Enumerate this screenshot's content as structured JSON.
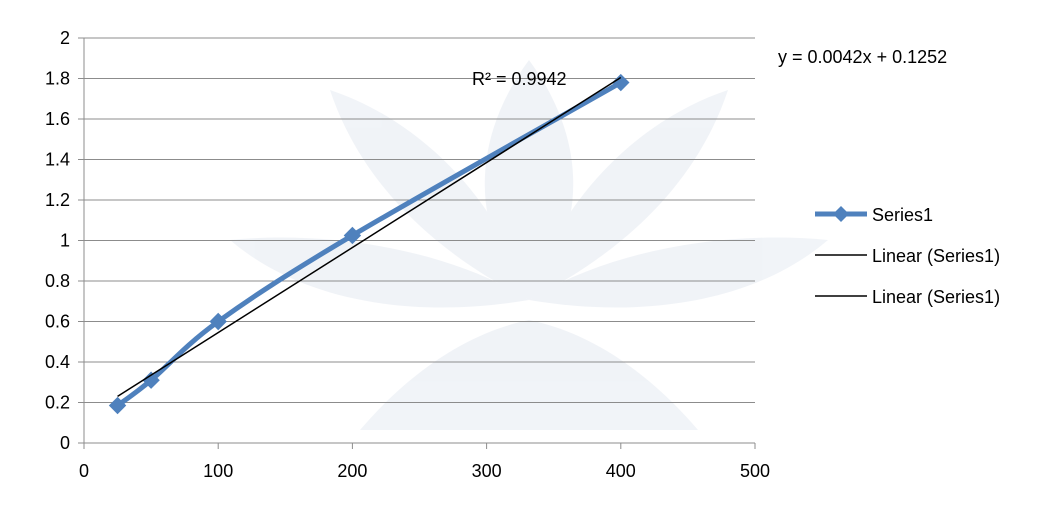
{
  "chart_data": {
    "type": "scatter",
    "title": "",
    "xlabel": "",
    "ylabel": "",
    "xlim": [
      0,
      500
    ],
    "ylim": [
      0,
      2
    ],
    "x_ticks": [
      0,
      100,
      200,
      300,
      400,
      500
    ],
    "y_ticks": [
      0,
      0.2,
      0.4,
      0.6,
      0.8,
      1,
      1.2,
      1.4,
      1.6,
      1.8,
      2
    ],
    "grid": "horizontal",
    "legend_position": "right",
    "series": [
      {
        "name": "Series1",
        "color": "#4F81BD",
        "marker": "diamond",
        "x": [
          25,
          50,
          100,
          200,
          400
        ],
        "y": [
          0.185,
          0.31,
          0.6,
          1.025,
          1.78
        ]
      }
    ],
    "trendline": {
      "color": "#000000",
      "slope": 0.0042,
      "intercept": 0.1252,
      "x_range": [
        25,
        400
      ]
    },
    "legend": [
      {
        "label": "Series1",
        "kind": "series"
      },
      {
        "label": "Linear (Series1)",
        "kind": "trend"
      },
      {
        "label": "Linear (Series1)",
        "kind": "trend"
      }
    ],
    "annotations": {
      "equation": "y = 0.0042x + 0.1252",
      "r_squared": "R² = 0.9942"
    }
  }
}
